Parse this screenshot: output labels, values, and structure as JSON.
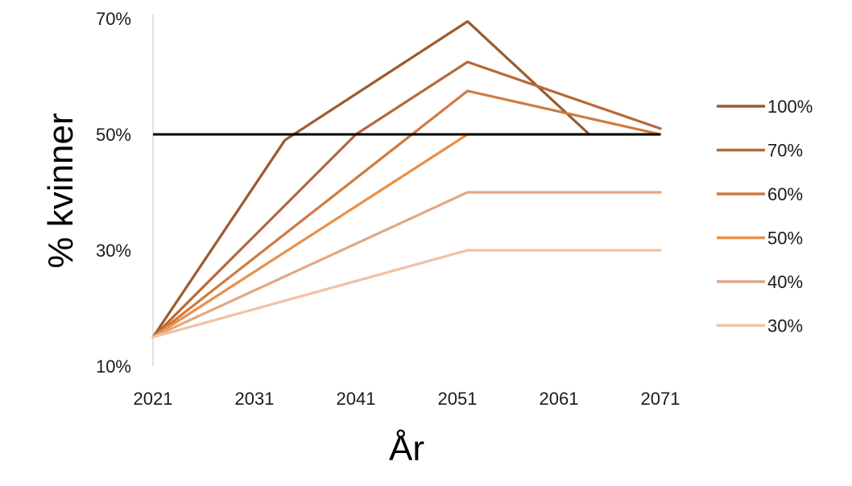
{
  "chart_data": {
    "type": "line",
    "title": "",
    "xlabel": "År",
    "ylabel": "% kvinner",
    "xlim": [
      2021,
      2071
    ],
    "ylim": [
      10,
      70
    ],
    "x_ticks": [
      2021,
      2031,
      2041,
      2051,
      2061,
      2071
    ],
    "x_tick_labels": [
      "2021",
      "2031",
      "2041",
      "2051",
      "2061",
      "2071"
    ],
    "y_ticks": [
      10,
      30,
      50,
      70
    ],
    "y_tick_labels": [
      "10%",
      "30%",
      "50%",
      "70%"
    ],
    "grid": false,
    "legend_position": "right",
    "reference_line": {
      "y": 50,
      "color": "#000000"
    },
    "series": [
      {
        "name": "100%",
        "color": "#9C5A2E",
        "points": [
          [
            2021,
            15
          ],
          [
            2034,
            49
          ],
          [
            2052,
            69.5
          ],
          [
            2064,
            50
          ]
        ]
      },
      {
        "name": "70%",
        "color": "#B8683A",
        "points": [
          [
            2021,
            15
          ],
          [
            2041,
            50
          ],
          [
            2052,
            62.5
          ],
          [
            2071,
            51
          ]
        ]
      },
      {
        "name": "60%",
        "color": "#D07A40",
        "points": [
          [
            2021,
            15
          ],
          [
            2052,
            57.5
          ],
          [
            2071,
            50
          ]
        ]
      },
      {
        "name": "50%",
        "color": "#E89048",
        "points": [
          [
            2021,
            15
          ],
          [
            2052,
            50
          ],
          [
            2071,
            50
          ]
        ]
      },
      {
        "name": "40%",
        "color": "#E3A782",
        "points": [
          [
            2021,
            15
          ],
          [
            2052,
            40
          ],
          [
            2071,
            40
          ]
        ]
      },
      {
        "name": "30%",
        "color": "#F0C2A6",
        "points": [
          [
            2021,
            15
          ],
          [
            2052,
            30
          ],
          [
            2071,
            30
          ]
        ]
      }
    ]
  }
}
